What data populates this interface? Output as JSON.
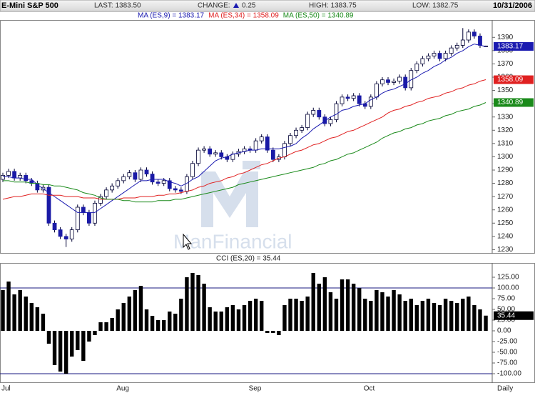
{
  "header": {
    "symbol": "E-Mini S&P 500",
    "last": "LAST: 1383.50",
    "change_label": "CHANGE:",
    "change": "0.25",
    "high": "HIGH: 1383.75",
    "low": "LOW: 1382.75",
    "date": "10/31/2006"
  },
  "chart_data": [
    {
      "type": "candlestick",
      "watermark": "ManFinancial",
      "up_color": "#ffffff",
      "down_color": "#1a1aa6",
      "wick_color": "#000033",
      "ylim": [
        1227,
        1402
      ],
      "yticks": [
        1230,
        1240,
        1250,
        1260,
        1270,
        1280,
        1290,
        1300,
        1310,
        1320,
        1330,
        1340,
        1350,
        1360,
        1370,
        1380,
        1390
      ],
      "open": [
        1283,
        1286,
        1289,
        1284,
        1286,
        1282,
        1280,
        1275,
        1277,
        1250,
        1245,
        1240,
        1238,
        1245,
        1262,
        1258,
        1250,
        1265,
        1270,
        1275,
        1278,
        1282,
        1285,
        1288,
        1283,
        1290,
        1287,
        1281,
        1280,
        1282,
        1276,
        1275,
        1274,
        1285,
        1295,
        1305,
        1306,
        1302,
        1303,
        1300,
        1298,
        1302,
        1304,
        1306,
        1305,
        1312,
        1315,
        1305,
        1298,
        1300,
        1310,
        1316,
        1320,
        1322,
        1332,
        1335,
        1330,
        1325,
        1328,
        1340,
        1345,
        1344,
        1346,
        1340,
        1338,
        1345,
        1355,
        1358,
        1356,
        1357,
        1360,
        1352,
        1365,
        1370,
        1374,
        1376,
        1378,
        1374,
        1378,
        1382,
        1384,
        1388,
        1394,
        1391,
        1383.25
      ],
      "high": [
        1288,
        1291,
        1291,
        1288,
        1288,
        1284,
        1282,
        1279,
        1279,
        1252,
        1247,
        1242,
        1247,
        1264,
        1264,
        1260,
        1267,
        1272,
        1277,
        1280,
        1284,
        1287,
        1290,
        1290,
        1292,
        1292,
        1289,
        1283,
        1284,
        1284,
        1278,
        1277,
        1287,
        1297,
        1307,
        1308,
        1308,
        1305,
        1305,
        1302,
        1304,
        1306,
        1308,
        1308,
        1314,
        1317,
        1317,
        1307,
        1302,
        1312,
        1318,
        1322,
        1324,
        1334,
        1337,
        1337,
        1332,
        1330,
        1342,
        1347,
        1347,
        1348,
        1348,
        1342,
        1347,
        1357,
        1360,
        1360,
        1359,
        1362,
        1362,
        1367,
        1372,
        1376,
        1378,
        1380,
        1380,
        1380,
        1384,
        1386,
        1397,
        1396,
        1396,
        1393,
        1383.75
      ],
      "low": [
        1281,
        1284,
        1282,
        1282,
        1280,
        1278,
        1273,
        1273,
        1248,
        1243,
        1238,
        1232,
        1236,
        1243,
        1256,
        1248,
        1248,
        1263,
        1268,
        1273,
        1276,
        1280,
        1283,
        1281,
        1281,
        1285,
        1279,
        1278,
        1278,
        1274,
        1273,
        1272,
        1272,
        1283,
        1293,
        1303,
        1300,
        1300,
        1298,
        1296,
        1296,
        1300,
        1302,
        1303,
        1303,
        1310,
        1303,
        1296,
        1296,
        1298,
        1308,
        1314,
        1318,
        1320,
        1330,
        1328,
        1323,
        1323,
        1326,
        1338,
        1342,
        1342,
        1338,
        1336,
        1336,
        1343,
        1353,
        1354,
        1354,
        1355,
        1350,
        1350,
        1363,
        1368,
        1372,
        1374,
        1372,
        1372,
        1376,
        1380,
        1382,
        1386,
        1389,
        1382,
        1382.75
      ],
      "close": [
        1286,
        1289,
        1284,
        1286,
        1282,
        1280,
        1275,
        1277,
        1250,
        1245,
        1240,
        1238,
        1245,
        1262,
        1258,
        1250,
        1265,
        1270,
        1275,
        1278,
        1282,
        1285,
        1288,
        1283,
        1290,
        1287,
        1281,
        1280,
        1282,
        1276,
        1275,
        1274,
        1285,
        1295,
        1305,
        1306,
        1302,
        1303,
        1300,
        1298,
        1302,
        1304,
        1306,
        1305,
        1312,
        1315,
        1305,
        1298,
        1300,
        1310,
        1316,
        1320,
        1322,
        1332,
        1335,
        1330,
        1325,
        1328,
        1340,
        1345,
        1344,
        1346,
        1340,
        1338,
        1345,
        1355,
        1358,
        1356,
        1357,
        1360,
        1352,
        1365,
        1370,
        1374,
        1376,
        1378,
        1374,
        1378,
        1382,
        1384,
        1388,
        1394,
        1391,
        1384,
        1383.5
      ],
      "series": [
        {
          "name": "MA (ES,9) = 1383.17",
          "color": "#1a1ab0",
          "end_label": "1383.17",
          "values": [
            1285,
            1285,
            1284,
            1284,
            1283,
            1283,
            1279,
            1276,
            1273,
            1270,
            1267,
            1264,
            1261,
            1258,
            1258,
            1258,
            1258,
            1261,
            1264,
            1267,
            1270,
            1273,
            1276,
            1279,
            1282,
            1282,
            1283,
            1283,
            1283,
            1281,
            1280,
            1278,
            1280,
            1283,
            1285,
            1289,
            1293,
            1297,
            1299,
            1300,
            1302,
            1303,
            1304,
            1305,
            1305,
            1306,
            1306,
            1306,
            1306,
            1307,
            1308,
            1310,
            1314,
            1317,
            1321,
            1324,
            1327,
            1330,
            1332,
            1335,
            1336,
            1338,
            1339,
            1340,
            1343,
            1345,
            1348,
            1350,
            1351,
            1353,
            1355,
            1358,
            1360,
            1363,
            1365,
            1368,
            1370,
            1373,
            1375,
            1378,
            1380,
            1383,
            1385,
            1384,
            1383.17
          ]
        },
        {
          "name": "MA (ES,34) = 1358.09",
          "color": "#e02020",
          "end_label": "1358.09",
          "values": [
            1268,
            1269,
            1270,
            1270,
            1271,
            1272,
            1272,
            1272,
            1271,
            1271,
            1271,
            1270,
            1270,
            1270,
            1269,
            1269,
            1269,
            1268,
            1268,
            1268,
            1268,
            1269,
            1269,
            1269,
            1270,
            1270,
            1270,
            1271,
            1271,
            1272,
            1272,
            1273,
            1274,
            1275,
            1277,
            1278,
            1280,
            1281,
            1282,
            1284,
            1285,
            1287,
            1288,
            1290,
            1292,
            1294,
            1295,
            1297,
            1299,
            1300,
            1302,
            1304,
            1305,
            1307,
            1309,
            1310,
            1312,
            1314,
            1315,
            1317,
            1319,
            1320,
            1322,
            1324,
            1326,
            1328,
            1330,
            1333,
            1335,
            1336,
            1338,
            1339,
            1341,
            1342,
            1344,
            1345,
            1346,
            1348,
            1349,
            1351,
            1352,
            1354,
            1355,
            1357,
            1358.09
          ]
        },
        {
          "name": "MA (ES,50) = 1340.89",
          "color": "#1a8a1a",
          "end_label": "1340.89",
          "values": [
            1282,
            1282,
            1281,
            1281,
            1281,
            1280,
            1280,
            1279,
            1279,
            1278,
            1278,
            1277,
            1276,
            1275,
            1273,
            1272,
            1271,
            1269,
            1268,
            1268,
            1268,
            1267,
            1267,
            1266,
            1266,
            1266,
            1266,
            1267,
            1267,
            1267,
            1268,
            1268,
            1269,
            1270,
            1271,
            1272,
            1273,
            1274,
            1275,
            1276,
            1277,
            1279,
            1280,
            1281,
            1282,
            1283,
            1284,
            1285,
            1286,
            1287,
            1288,
            1289,
            1290,
            1291,
            1292,
            1294,
            1295,
            1297,
            1298,
            1300,
            1302,
            1303,
            1305,
            1307,
            1309,
            1311,
            1314,
            1316,
            1318,
            1319,
            1321,
            1322,
            1324,
            1325,
            1327,
            1328,
            1329,
            1331,
            1332,
            1334,
            1335,
            1336,
            1338,
            1339,
            1340.89
          ]
        }
      ]
    },
    {
      "type": "bar",
      "title": "CCI (ES,20) = 35.44",
      "color": "#000000",
      "end_label": "35.44",
      "xlabel": "Daily",
      "categories": [
        "Jul",
        null,
        null,
        null,
        null,
        null,
        null,
        null,
        null,
        null,
        null,
        null,
        null,
        null,
        null,
        null,
        null,
        null,
        null,
        null,
        "Aug",
        null,
        null,
        null,
        null,
        null,
        null,
        null,
        null,
        null,
        null,
        null,
        null,
        null,
        null,
        null,
        null,
        null,
        null,
        null,
        null,
        null,
        null,
        "Sep",
        null,
        null,
        null,
        null,
        null,
        null,
        null,
        null,
        null,
        null,
        null,
        null,
        null,
        null,
        null,
        null,
        null,
        null,
        null,
        "Oct",
        null,
        null,
        null,
        null,
        null,
        null,
        null,
        null,
        null,
        null,
        null,
        null,
        null,
        null,
        null,
        null,
        null,
        null,
        null,
        null,
        null
      ],
      "values": [
        95,
        115,
        85,
        95,
        80,
        65,
        55,
        40,
        -30,
        -80,
        -95,
        -100,
        -60,
        -45,
        -70,
        -25,
        -10,
        20,
        20,
        30,
        50,
        65,
        80,
        95,
        105,
        50,
        35,
        25,
        25,
        45,
        40,
        75,
        125,
        135,
        130,
        110,
        55,
        45,
        45,
        55,
        60,
        50,
        60,
        70,
        75,
        70,
        -5,
        -5,
        -10,
        60,
        75,
        75,
        70,
        80,
        135,
        110,
        125,
        90,
        75,
        120,
        120,
        110,
        100,
        75,
        70,
        95,
        90,
        80,
        95,
        85,
        70,
        75,
        60,
        70,
        75,
        65,
        60,
        75,
        70,
        65,
        75,
        80,
        60,
        50,
        35.44
      ],
      "ylim": [
        -115,
        155
      ],
      "yticks": [
        {
          "value": 125,
          "label": "125.00"
        },
        {
          "value": 100,
          "label": "100.00"
        },
        {
          "value": 75,
          "label": "75.00"
        },
        {
          "value": 50,
          "label": "50.00"
        },
        {
          "value": 25,
          "label": "25.00"
        },
        {
          "value": 0,
          "label": "0.00"
        },
        {
          "value": -25,
          "label": "-25.00"
        },
        {
          "value": -50,
          "label": "-50.00"
        },
        {
          "value": -75,
          "label": "-75.00"
        },
        {
          "value": -100,
          "label": "-100.00"
        }
      ],
      "hlines": [
        100,
        -100
      ],
      "hline_color": "#1a1a80"
    }
  ]
}
